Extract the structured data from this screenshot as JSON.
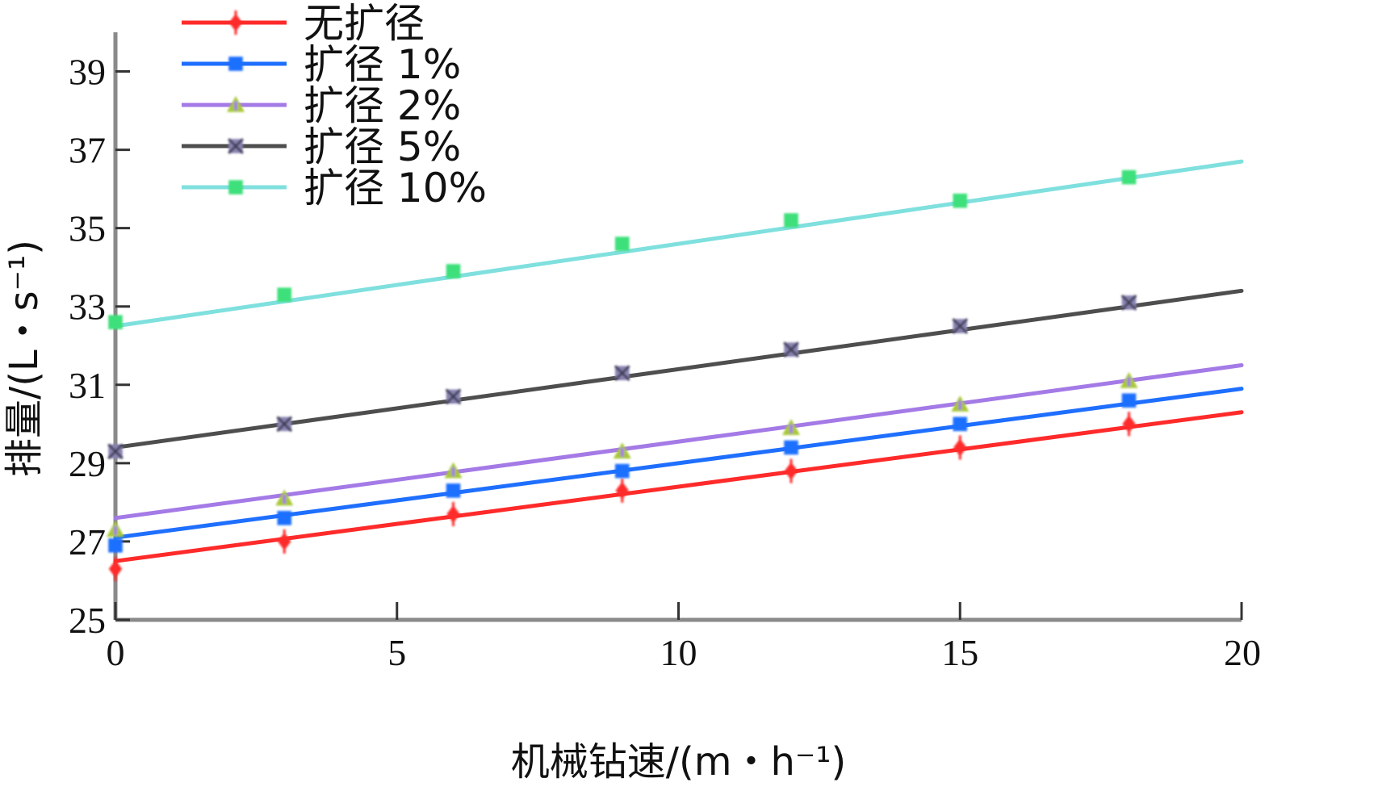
{
  "chart_data": {
    "type": "line",
    "title": "",
    "xlabel": "机械钻速/(m・h⁻¹)",
    "ylabel": "排量/(L・s⁻¹)",
    "xlim": [
      0,
      20
    ],
    "ylim": [
      25,
      40
    ],
    "xticks": [
      0,
      5,
      10,
      15,
      20
    ],
    "yticks": [
      25,
      27,
      29,
      31,
      33,
      35,
      37,
      39
    ],
    "legend_position": "top-left",
    "series": [
      {
        "name": "无扩径",
        "color": "#ff2a2a",
        "marker": "diamond",
        "line_start": [
          0,
          26.5
        ],
        "line_end": [
          20,
          30.3
        ],
        "x": [
          0,
          3,
          6,
          9,
          12,
          15,
          18
        ],
        "y": [
          26.3,
          27.0,
          27.7,
          28.3,
          28.8,
          29.4,
          30.0
        ]
      },
      {
        "name": "扩径 1%",
        "color": "#1f6fff",
        "marker": "square",
        "line_start": [
          0,
          27.1
        ],
        "line_end": [
          20,
          30.9
        ],
        "x": [
          0,
          3,
          6,
          9,
          12,
          15,
          18
        ],
        "y": [
          26.9,
          27.6,
          28.3,
          28.8,
          29.4,
          30.0,
          30.6
        ]
      },
      {
        "name": "扩径 2%",
        "color": "#a47ae6",
        "marker": "triangle",
        "marker_color": "#a8c836",
        "line_start": [
          0,
          27.6
        ],
        "line_end": [
          20,
          31.5
        ],
        "x": [
          0,
          3,
          6,
          9,
          12,
          15,
          18
        ],
        "y": [
          27.3,
          28.1,
          28.8,
          29.3,
          29.9,
          30.5,
          31.1
        ]
      },
      {
        "name": "扩径 5%",
        "color": "#4e4e4e",
        "marker": "x-square",
        "marker_color": "#8a84b2",
        "line_start": [
          0,
          29.4
        ],
        "line_end": [
          20,
          33.4
        ],
        "x": [
          0,
          3,
          6,
          9,
          12,
          15,
          18
        ],
        "y": [
          29.3,
          30.0,
          30.7,
          31.3,
          31.9,
          32.5,
          33.1
        ]
      },
      {
        "name": "扩径 10%",
        "color": "#7fe0de",
        "marker": "square",
        "marker_color": "#3ee07a",
        "line_start": [
          0,
          32.5
        ],
        "line_end": [
          20,
          36.7
        ],
        "x": [
          0,
          3,
          6,
          9,
          12,
          15,
          18
        ],
        "y": [
          32.6,
          33.3,
          33.9,
          34.6,
          35.2,
          35.7,
          36.3
        ]
      }
    ]
  }
}
